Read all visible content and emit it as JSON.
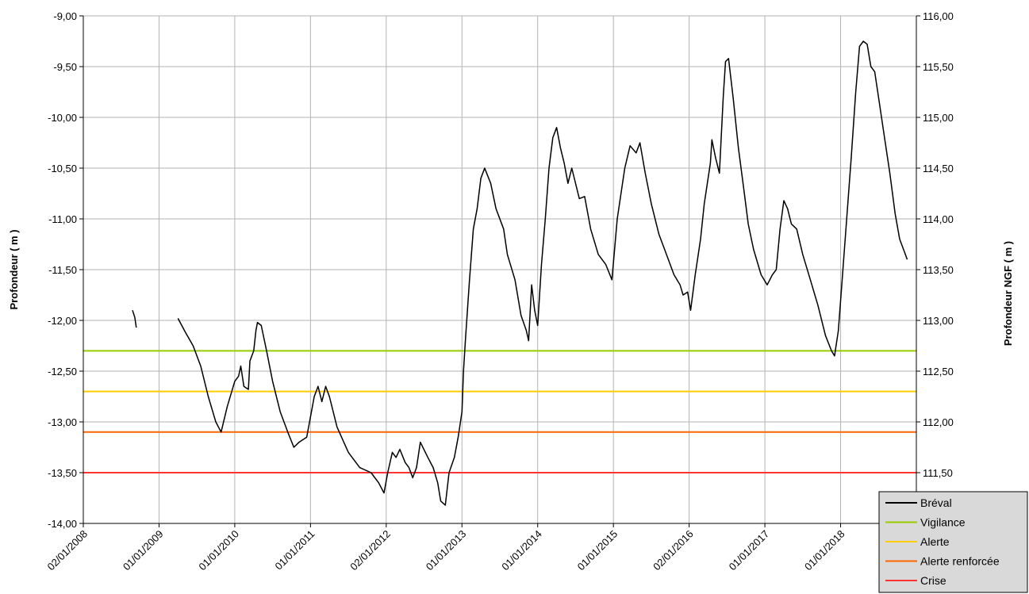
{
  "chart_data": {
    "type": "line",
    "title": "",
    "ylabel_left": "Profondeur ( m )",
    "ylabel_right": "Profondeur NGF ( m )",
    "x_ticks": [
      "02/01/2008",
      "01/01/2009",
      "01/01/2010",
      "01/01/2011",
      "02/01/2012",
      "01/01/2013",
      "01/01/2014",
      "01/01/2015",
      "02/01/2016",
      "01/01/2017",
      "01/01/2018"
    ],
    "ylim_left": [
      -14,
      -9
    ],
    "ylim_right": [
      111.0,
      116.0
    ],
    "y_ticks_left": [
      "-9,00",
      "-9,50",
      "-10,00",
      "-10,50",
      "-11,00",
      "-11,50",
      "-12,00",
      "-12,50",
      "-13,00",
      "-13,50",
      "-14,00"
    ],
    "y_ticks_right": [
      "116,00",
      "115,50",
      "115,00",
      "114,50",
      "114,00",
      "113,50",
      "113,00",
      "112,50",
      "112,00",
      "111,50",
      "111,00"
    ],
    "grid": true,
    "legend_position": "bottom-right",
    "series": [
      {
        "name": "Bréval",
        "color": "#000000",
        "segments": [
          [
            [
              2008.65,
              -11.9
            ],
            [
              2008.68,
              -11.97
            ],
            [
              2008.7,
              -12.07
            ]
          ],
          [
            [
              2009.25,
              -11.98
            ],
            [
              2009.35,
              -12.12
            ],
            [
              2009.45,
              -12.25
            ],
            [
              2009.55,
              -12.45
            ],
            [
              2009.65,
              -12.75
            ],
            [
              2009.75,
              -13.0
            ],
            [
              2009.82,
              -13.1
            ],
            [
              2009.9,
              -12.85
            ],
            [
              2010.0,
              -12.6
            ],
            [
              2010.05,
              -12.55
            ],
            [
              2010.08,
              -12.45
            ],
            [
              2010.12,
              -12.65
            ],
            [
              2010.18,
              -12.68
            ],
            [
              2010.2,
              -12.4
            ],
            [
              2010.25,
              -12.3
            ],
            [
              2010.28,
              -12.1
            ],
            [
              2010.3,
              -12.02
            ],
            [
              2010.35,
              -12.05
            ],
            [
              2010.42,
              -12.3
            ],
            [
              2010.5,
              -12.6
            ],
            [
              2010.6,
              -12.9
            ],
            [
              2010.7,
              -13.1
            ],
            [
              2010.78,
              -13.25
            ],
            [
              2010.85,
              -13.2
            ],
            [
              2010.95,
              -13.15
            ],
            [
              2011.05,
              -12.75
            ],
            [
              2011.1,
              -12.65
            ],
            [
              2011.15,
              -12.8
            ],
            [
              2011.2,
              -12.65
            ],
            [
              2011.25,
              -12.75
            ],
            [
              2011.35,
              -13.05
            ],
            [
              2011.5,
              -13.3
            ],
            [
              2011.65,
              -13.45
            ],
            [
              2011.8,
              -13.5
            ],
            [
              2011.9,
              -13.6
            ],
            [
              2011.97,
              -13.7
            ],
            [
              2012.02,
              -13.5
            ],
            [
              2012.08,
              -13.3
            ],
            [
              2012.13,
              -13.35
            ],
            [
              2012.18,
              -13.27
            ],
            [
              2012.25,
              -13.4
            ],
            [
              2012.3,
              -13.45
            ],
            [
              2012.35,
              -13.55
            ],
            [
              2012.4,
              -13.45
            ],
            [
              2012.45,
              -13.2
            ],
            [
              2012.55,
              -13.35
            ],
            [
              2012.62,
              -13.45
            ],
            [
              2012.68,
              -13.6
            ],
            [
              2012.72,
              -13.78
            ],
            [
              2012.78,
              -13.82
            ],
            [
              2012.83,
              -13.5
            ],
            [
              2012.9,
              -13.35
            ],
            [
              2012.95,
              -13.15
            ],
            [
              2013.0,
              -12.9
            ],
            [
              2013.02,
              -12.5
            ],
            [
              2013.05,
              -12.15
            ],
            [
              2013.1,
              -11.6
            ],
            [
              2013.15,
              -11.1
            ],
            [
              2013.2,
              -10.9
            ],
            [
              2013.25,
              -10.6
            ],
            [
              2013.3,
              -10.5
            ],
            [
              2013.38,
              -10.65
            ],
            [
              2013.45,
              -10.9
            ],
            [
              2013.55,
              -11.1
            ],
            [
              2013.6,
              -11.35
            ],
            [
              2013.7,
              -11.6
            ],
            [
              2013.78,
              -11.95
            ],
            [
              2013.85,
              -12.1
            ],
            [
              2013.88,
              -12.2
            ],
            [
              2013.92,
              -11.65
            ],
            [
              2013.96,
              -11.9
            ],
            [
              2014.0,
              -12.05
            ],
            [
              2014.05,
              -11.45
            ],
            [
              2014.1,
              -11.0
            ],
            [
              2014.15,
              -10.5
            ],
            [
              2014.2,
              -10.2
            ],
            [
              2014.25,
              -10.1
            ],
            [
              2014.3,
              -10.3
            ],
            [
              2014.35,
              -10.45
            ],
            [
              2014.4,
              -10.65
            ],
            [
              2014.45,
              -10.5
            ],
            [
              2014.55,
              -10.8
            ],
            [
              2014.62,
              -10.78
            ],
            [
              2014.7,
              -11.1
            ],
            [
              2014.8,
              -11.35
            ],
            [
              2014.9,
              -11.45
            ],
            [
              2014.98,
              -11.6
            ],
            [
              2015.05,
              -11.0
            ],
            [
              2015.15,
              -10.5
            ],
            [
              2015.22,
              -10.28
            ],
            [
              2015.3,
              -10.35
            ],
            [
              2015.35,
              -10.25
            ],
            [
              2015.42,
              -10.55
            ],
            [
              2015.5,
              -10.85
            ],
            [
              2015.6,
              -11.15
            ],
            [
              2015.7,
              -11.35
            ],
            [
              2015.8,
              -11.55
            ],
            [
              2015.88,
              -11.65
            ],
            [
              2015.92,
              -11.75
            ],
            [
              2015.98,
              -11.72
            ],
            [
              2016.02,
              -11.9
            ],
            [
              2016.08,
              -11.55
            ],
            [
              2016.15,
              -11.2
            ],
            [
              2016.2,
              -10.85
            ],
            [
              2016.28,
              -10.45
            ],
            [
              2016.3,
              -10.22
            ],
            [
              2016.35,
              -10.4
            ],
            [
              2016.4,
              -10.55
            ],
            [
              2016.45,
              -9.8
            ],
            [
              2016.48,
              -9.45
            ],
            [
              2016.52,
              -9.42
            ],
            [
              2016.58,
              -9.8
            ],
            [
              2016.65,
              -10.3
            ],
            [
              2016.72,
              -10.7
            ],
            [
              2016.78,
              -11.05
            ],
            [
              2016.85,
              -11.3
            ],
            [
              2016.95,
              -11.55
            ],
            [
              2017.03,
              -11.65
            ],
            [
              2017.1,
              -11.55
            ],
            [
              2017.15,
              -11.5
            ],
            [
              2017.2,
              -11.1
            ],
            [
              2017.25,
              -10.82
            ],
            [
              2017.3,
              -10.9
            ],
            [
              2017.35,
              -11.05
            ],
            [
              2017.42,
              -11.1
            ],
            [
              2017.5,
              -11.35
            ],
            [
              2017.6,
              -11.6
            ],
            [
              2017.7,
              -11.85
            ],
            [
              2017.8,
              -12.15
            ],
            [
              2017.88,
              -12.3
            ],
            [
              2017.92,
              -12.35
            ],
            [
              2017.97,
              -12.1
            ],
            [
              2018.02,
              -11.6
            ],
            [
              2018.08,
              -11.0
            ],
            [
              2018.14,
              -10.4
            ],
            [
              2018.2,
              -9.75
            ],
            [
              2018.25,
              -9.3
            ],
            [
              2018.3,
              -9.25
            ],
            [
              2018.35,
              -9.28
            ],
            [
              2018.4,
              -9.5
            ],
            [
              2018.45,
              -9.55
            ],
            [
              2018.5,
              -9.8
            ],
            [
              2018.58,
              -10.2
            ],
            [
              2018.65,
              -10.55
            ],
            [
              2018.72,
              -10.95
            ],
            [
              2018.78,
              -11.2
            ],
            [
              2018.83,
              -11.3
            ],
            [
              2018.88,
              -11.4
            ]
          ]
        ]
      },
      {
        "name": "Vigilance",
        "color": "#99cc00",
        "value": -12.3
      },
      {
        "name": "Alerte",
        "color": "#ffcc00",
        "value": -12.7
      },
      {
        "name": "Alerte renforcée",
        "color": "#ff6600",
        "value": -13.1
      },
      {
        "name": "Crise",
        "color": "#ff3333",
        "value": -13.5
      }
    ]
  }
}
